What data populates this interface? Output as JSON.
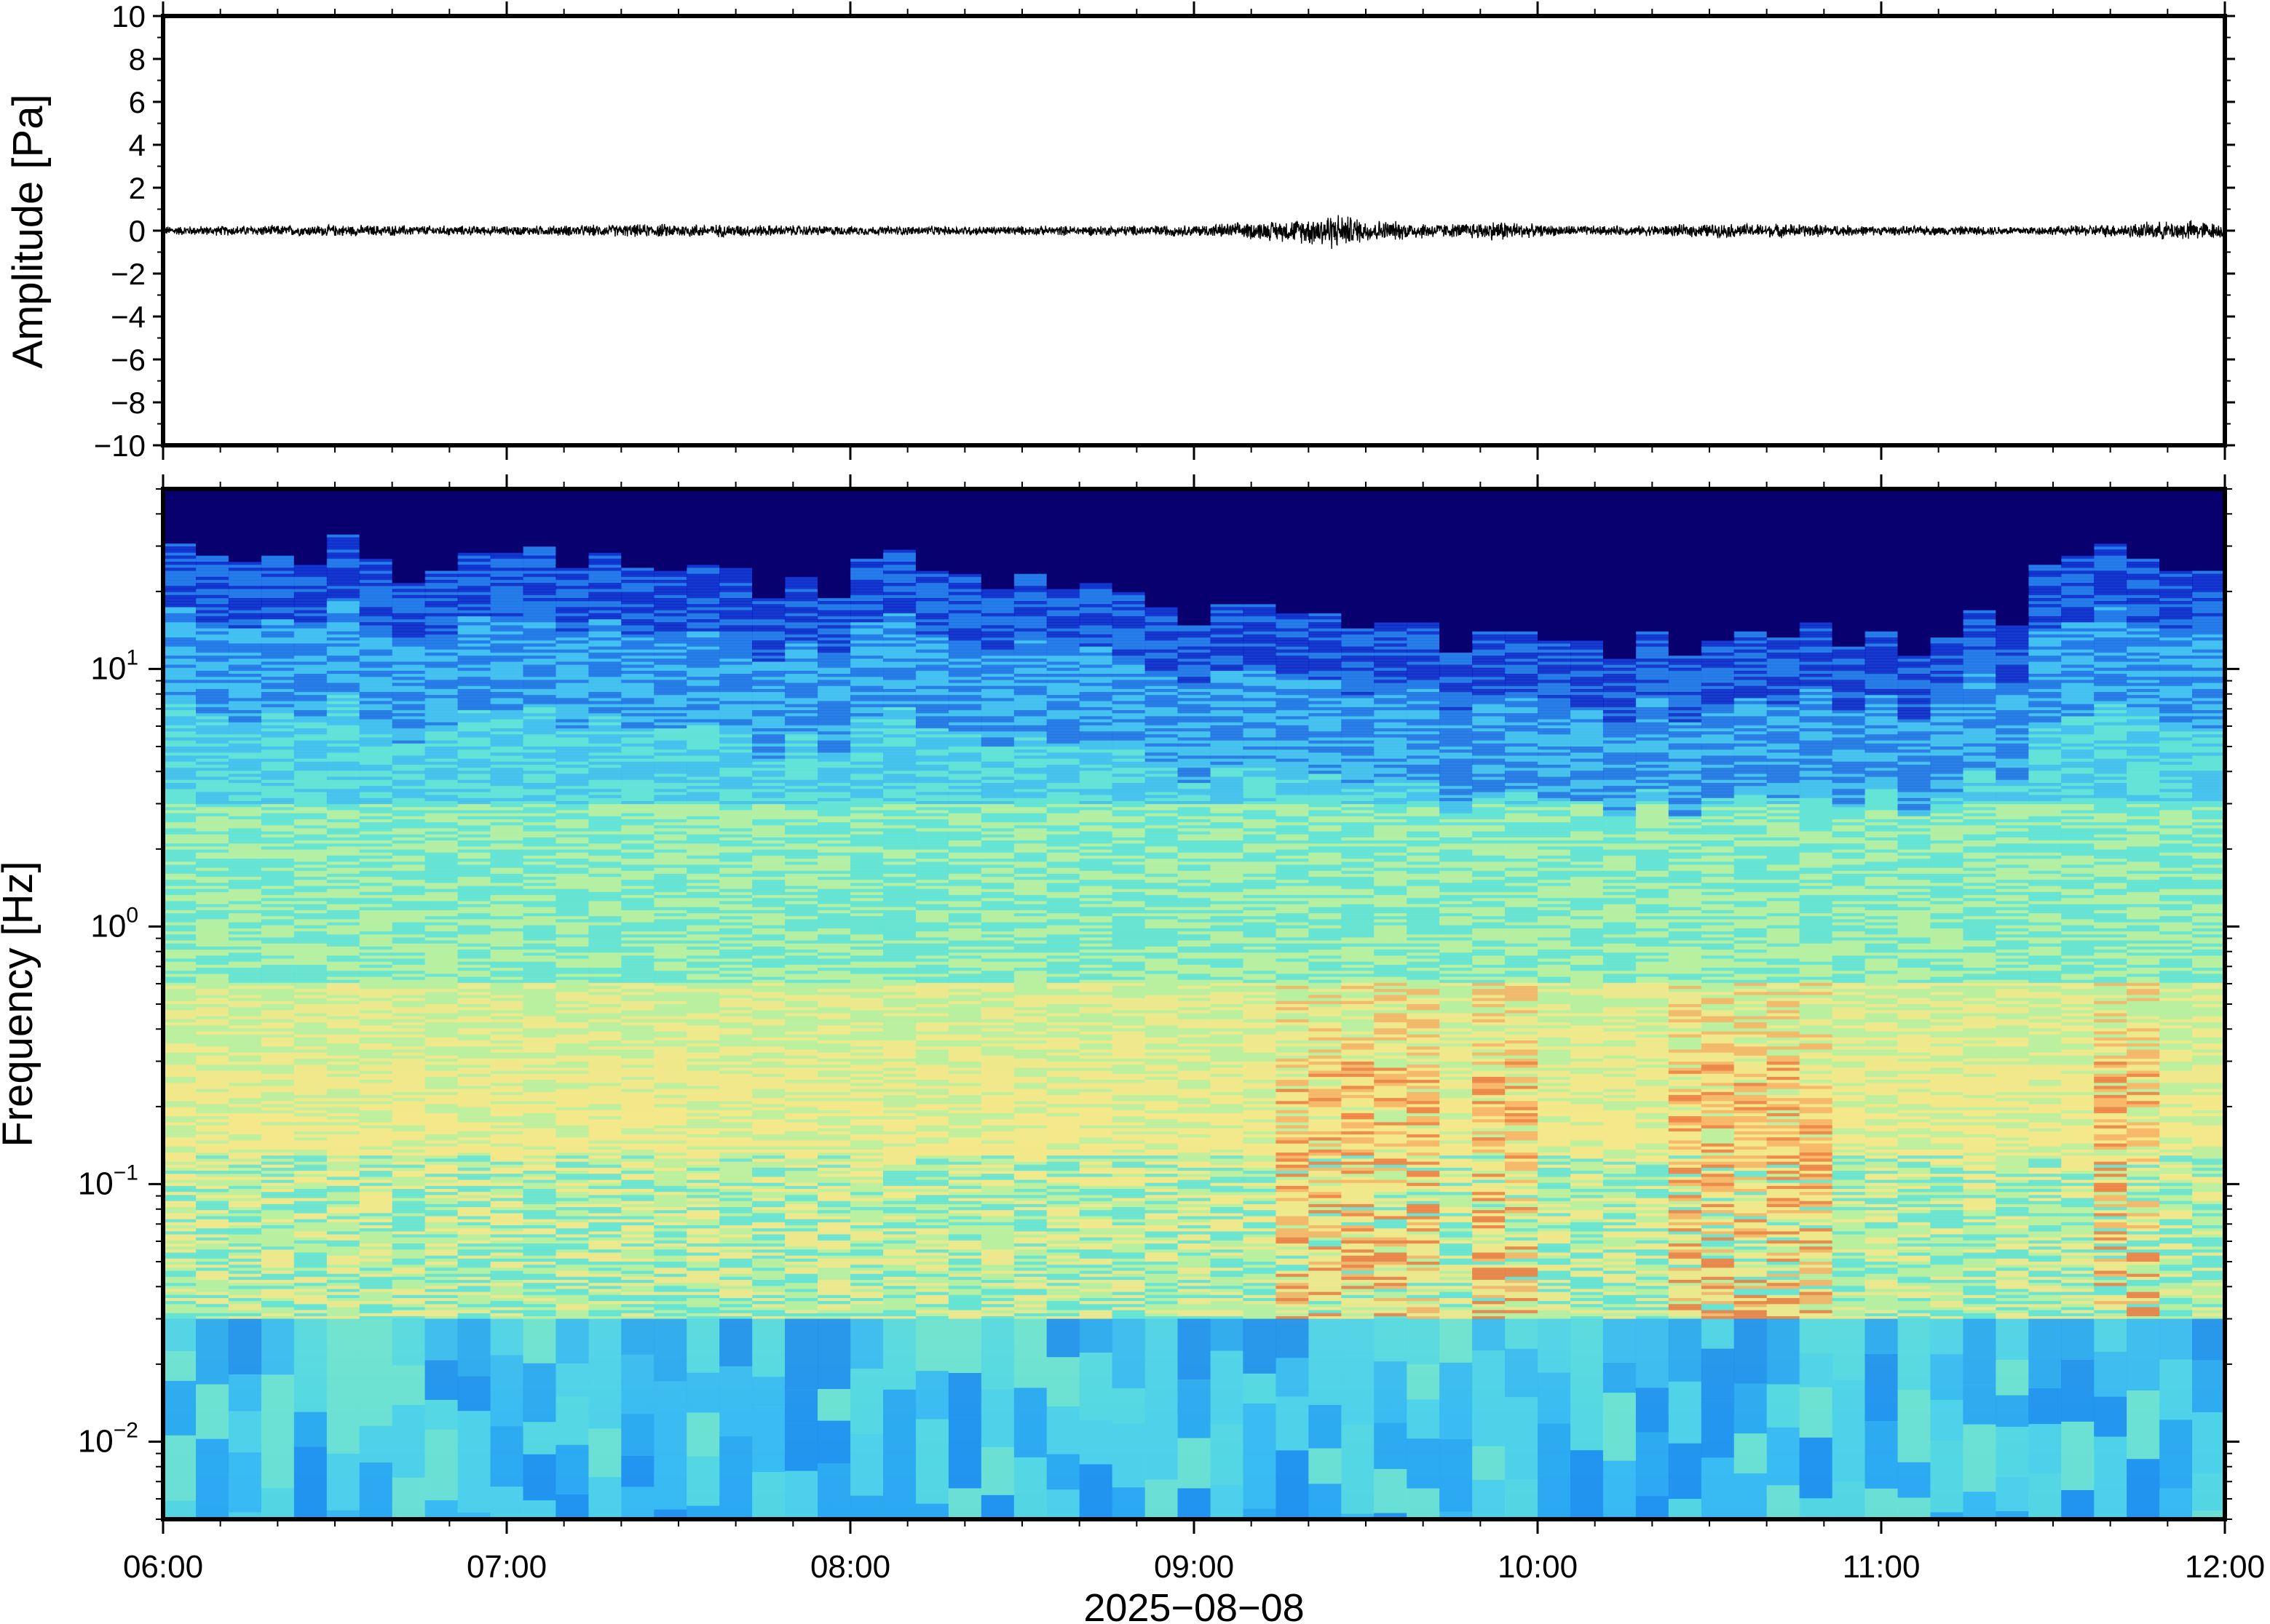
{
  "chart_data": [
    {
      "type": "line",
      "ylabel": "Amplitude [Pa]",
      "ylim": [
        -10,
        10
      ],
      "yticks": [
        "10",
        "8",
        "6",
        "4",
        "2",
        "0",
        "−2",
        "−4",
        "−6",
        "−8",
        "−10"
      ],
      "yticks_values": [
        10,
        8,
        6,
        4,
        2,
        0,
        -2,
        -4,
        -6,
        -8,
        -10
      ],
      "x_range": [
        "06:00",
        "12:00"
      ],
      "series": [
        {
          "values_description_only": false,
          "envelope_x_hours": [
            6.0,
            6.5,
            7.0,
            7.5,
            8.0,
            8.5,
            9.0,
            9.2,
            9.3,
            9.4,
            9.5,
            9.6,
            9.75,
            9.9,
            10.0,
            10.25,
            10.5,
            10.75,
            11.0,
            11.25,
            11.5,
            11.7,
            11.9,
            12.0
          ],
          "envelope_amplitude_pa": [
            0.2,
            0.25,
            0.2,
            0.3,
            0.2,
            0.2,
            0.25,
            0.4,
            0.5,
            0.8,
            0.5,
            0.4,
            0.3,
            0.45,
            0.25,
            0.2,
            0.3,
            0.3,
            0.2,
            0.2,
            0.2,
            0.3,
            0.45,
            0.3
          ]
        }
      ],
      "grid": false
    },
    {
      "type": "heatmap",
      "ylabel": "Frequency [Hz]",
      "xlabel": "2025−08−08",
      "yscale": "log",
      "ylim": [
        0.005,
        50
      ],
      "yticks": [
        {
          "base": "10",
          "exp": "1",
          "value": 10
        },
        {
          "base": "10",
          "exp": "0",
          "value": 1
        },
        {
          "base": "10",
          "exp": "−1",
          "value": 0.1
        },
        {
          "base": "10",
          "exp": "−2",
          "value": 0.01
        }
      ],
      "xticks": [
        "06:00",
        "07:00",
        "08:00",
        "09:00",
        "10:00",
        "11:00",
        "12:00"
      ],
      "x_range": [
        "06:00",
        "12:00"
      ],
      "colormap": [
        "#08006e",
        "#0a1fc8",
        "#1f6ee8",
        "#3fbdf2",
        "#5fe3d8",
        "#b8f0a0",
        "#f4e88a",
        "#f9b264",
        "#f07a40"
      ],
      "high_frequency_cutoff_hz": [
        22,
        24,
        20,
        24,
        20,
        18,
        17,
        22,
        18,
        16,
        13,
        14,
        12,
        10,
        9,
        10,
        11,
        10,
        12,
        22,
        20
      ],
      "microbarom_band_hz": [
        0.15,
        0.25
      ],
      "grid": false
    }
  ],
  "colors": {
    "axis": "#000000",
    "trace": "#000000",
    "background": "#ffffff"
  }
}
